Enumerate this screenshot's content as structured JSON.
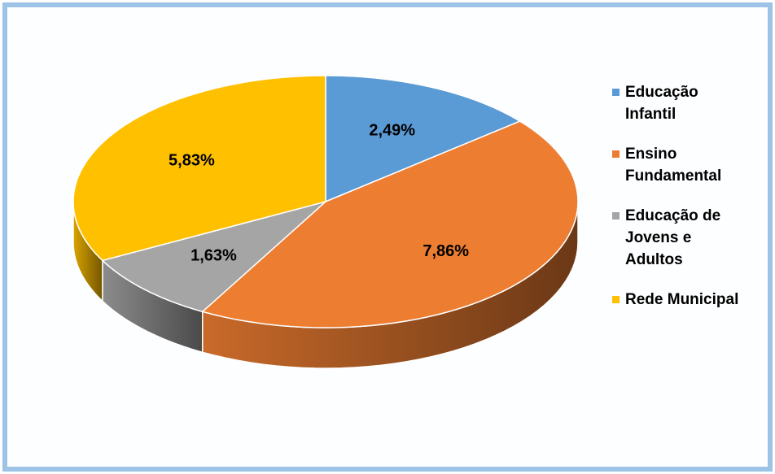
{
  "chart_data": {
    "type": "pie3d",
    "categories": [
      "Educação Infantil",
      "Ensino Fundamental",
      "Educação de Jovens e Adultos",
      "Rede Municipal"
    ],
    "values": [
      2.49,
      7.86,
      1.63,
      5.83
    ],
    "value_labels": [
      "2,49%",
      "7,86%",
      "1,63%",
      "5,83%"
    ],
    "colors": [
      "#5b9bd5",
      "#ed7d31",
      "#a5a5a5",
      "#ffc000"
    ],
    "legend": "right"
  }
}
